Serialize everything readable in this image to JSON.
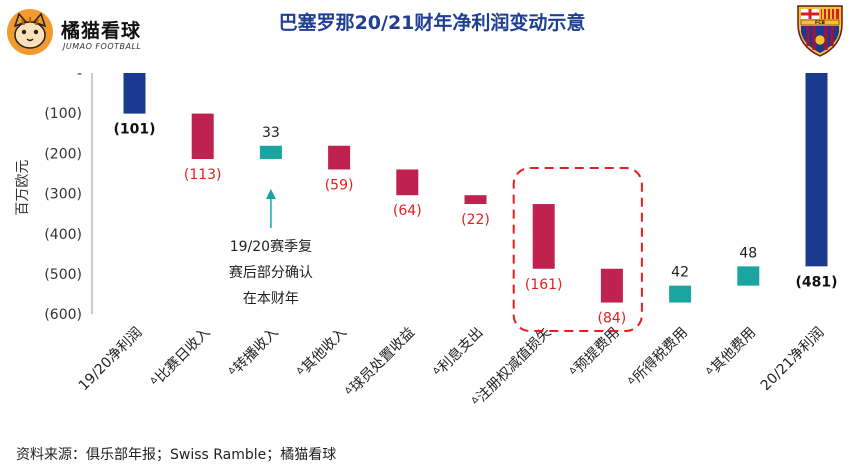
{
  "brand": {
    "name": "橘猫看球",
    "subtitle": "JUMAO FOOTBALL"
  },
  "crest": {
    "text": "FCB"
  },
  "source_note": "资料来源：俱乐部年报；Swiss Ramble；橘猫看球",
  "colors": {
    "total": "#1a3a8f",
    "negative": "#c0224f",
    "positive": "#1ba5a0",
    "highlight_box": "#e81d1d",
    "label_negative": "#e81d1d"
  },
  "chart_data": {
    "type": "waterfall",
    "title": "巴塞罗那20/21财年净利润变动示意",
    "ylabel": "百万欧元",
    "ylim": [
      -600,
      0
    ],
    "yticks": [
      {
        "value": 0,
        "label": "-"
      },
      {
        "value": -100,
        "label": "(100)"
      },
      {
        "value": -200,
        "label": "(200)"
      },
      {
        "value": -300,
        "label": "(300)"
      },
      {
        "value": -400,
        "label": "(400)"
      },
      {
        "value": -500,
        "label": "(500)"
      },
      {
        "value": -600,
        "label": "(600)"
      }
    ],
    "categories": [
      "19/20净利润",
      "ᐞ比赛日收入",
      "ᐞ转播收入",
      "ᐞ其他收入",
      "ᐞ球员处置收益",
      "ᐞ利息支出",
      "ᐞ注册权减值损失",
      "ᐞ预提费用",
      "ᐞ所得税费用",
      "ᐞ其他费用",
      "20/21净利润"
    ],
    "values": [
      -101,
      -113,
      33,
      -59,
      -64,
      -22,
      -161,
      -84,
      42,
      48,
      -481
    ],
    "kinds": [
      "total",
      "delta",
      "delta",
      "delta",
      "delta",
      "delta",
      "delta",
      "delta",
      "delta",
      "delta",
      "total"
    ],
    "data_labels": [
      "(101)",
      "(113)",
      "33",
      "(59)",
      "(64)",
      "(22)",
      "(161)",
      "(84)",
      "42",
      "48",
      "(481)"
    ],
    "annotation": {
      "lines": [
        "19/20赛季复",
        "赛后部分确认",
        "在本财年"
      ],
      "target_index": 2
    },
    "highlight_indices": [
      6,
      7
    ]
  }
}
